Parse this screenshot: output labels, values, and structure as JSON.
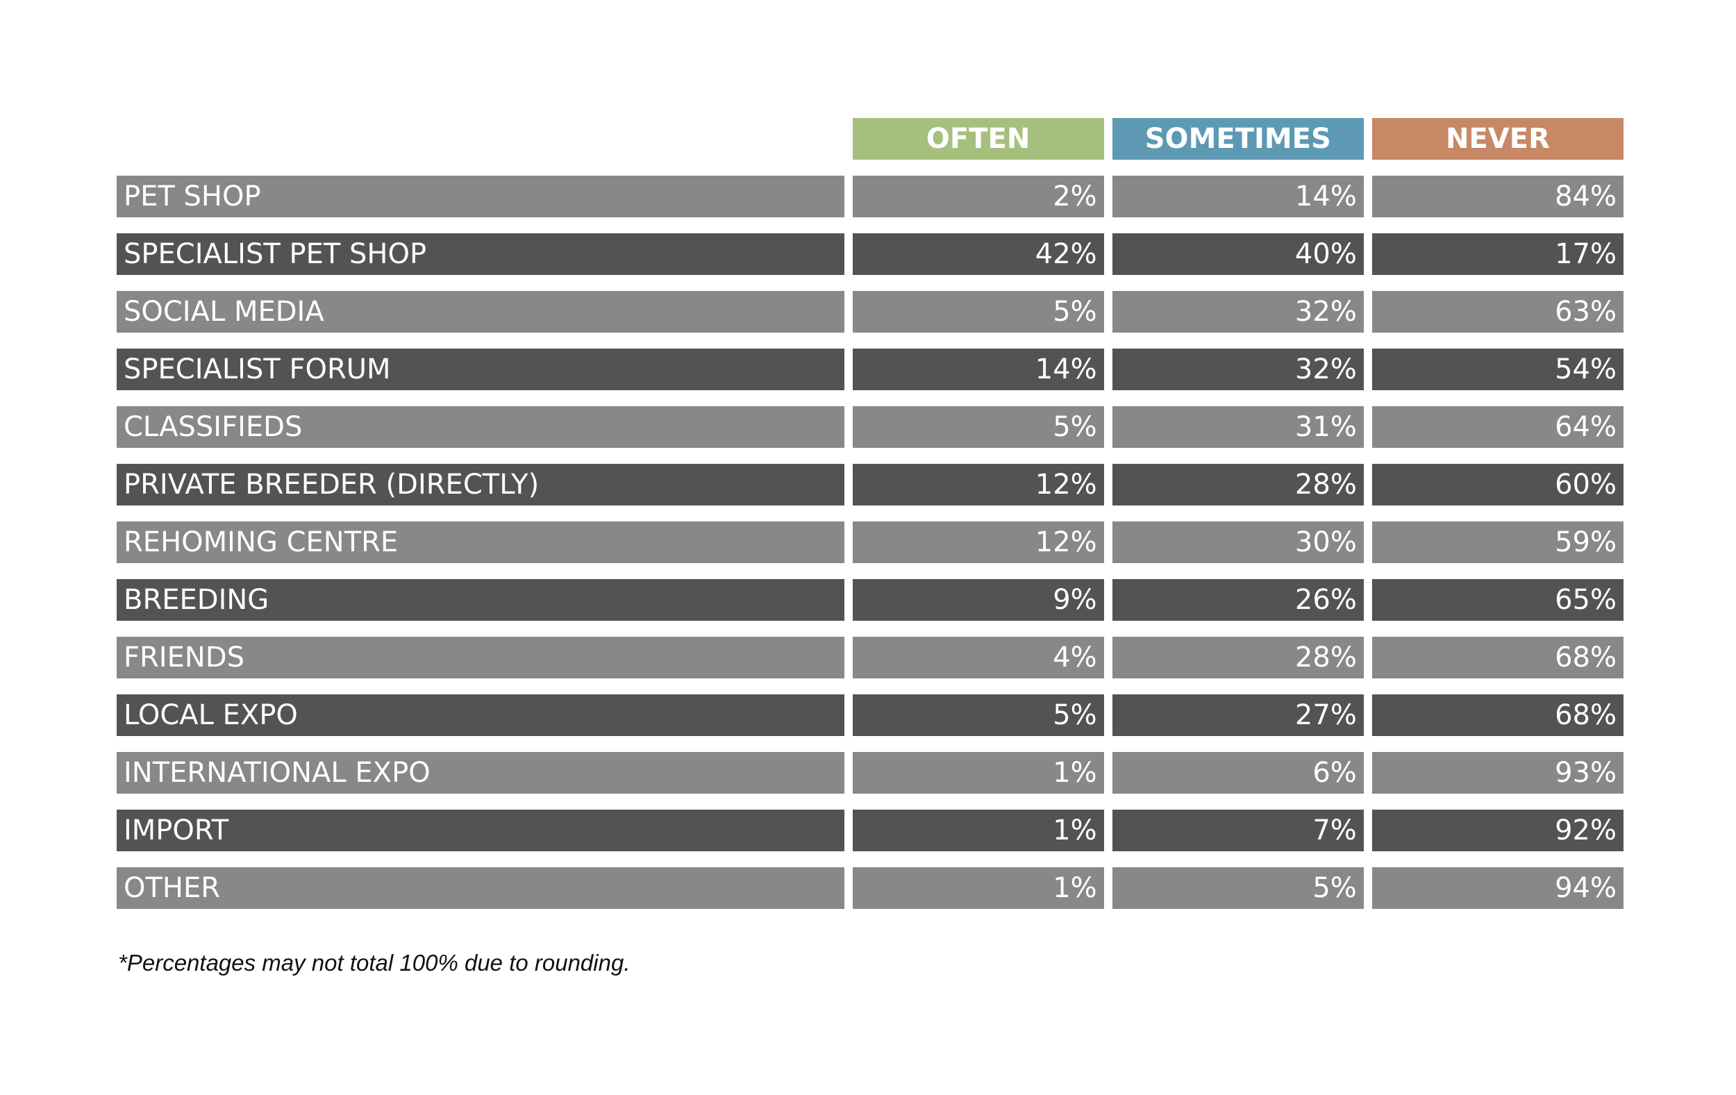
{
  "colors": {
    "often": "#a5c07d",
    "sometimes": "#5d99b3",
    "never": "#c78865",
    "row_light": "#888888",
    "row_dark": "#535353"
  },
  "headers": [
    "OFTEN",
    "SOMETIMES",
    "NEVER"
  ],
  "footnote": "*Percentages may not total 100% due to rounding.",
  "chart_data": {
    "type": "table",
    "columns": [
      "OFTEN",
      "SOMETIMES",
      "NEVER"
    ],
    "rows": [
      {
        "label": "PET SHOP",
        "values": [
          "2%",
          "14%",
          "84%"
        ]
      },
      {
        "label": "SPECIALIST PET SHOP",
        "values": [
          "42%",
          "40%",
          "17%"
        ]
      },
      {
        "label": "SOCIAL MEDIA",
        "values": [
          "5%",
          "32%",
          "63%"
        ]
      },
      {
        "label": "SPECIALIST FORUM",
        "values": [
          "14%",
          "32%",
          "54%"
        ]
      },
      {
        "label": "CLASSIFIEDS",
        "values": [
          "5%",
          "31%",
          "64%"
        ]
      },
      {
        "label": "PRIVATE BREEDER (DIRECTLY)",
        "values": [
          "12%",
          "28%",
          "60%"
        ]
      },
      {
        "label": "REHOMING CENTRE",
        "values": [
          "12%",
          "30%",
          "59%"
        ]
      },
      {
        "label": "BREEDING",
        "values": [
          "9%",
          "26%",
          "65%"
        ]
      },
      {
        "label": "FRIENDS",
        "values": [
          "4%",
          "28%",
          "68%"
        ]
      },
      {
        "label": "LOCAL EXPO",
        "values": [
          "5%",
          "27%",
          "68%"
        ]
      },
      {
        "label": "INTERNATIONAL EXPO",
        "values": [
          "1%",
          "6%",
          "93%"
        ]
      },
      {
        "label": "IMPORT",
        "values": [
          "1%",
          "7%",
          "92%"
        ]
      },
      {
        "label": "OTHER",
        "values": [
          "1%",
          "5%",
          "94%"
        ]
      }
    ]
  }
}
